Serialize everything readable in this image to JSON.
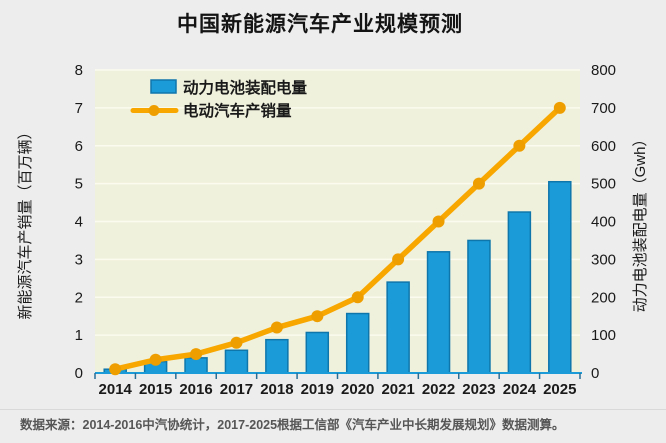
{
  "page": {
    "title": "中国新能源汽车产业规模预测",
    "footer": "数据来源：2014-2016中汽协统计，2017-2025根据工信部《汽车产业中长期发展规划》数据测算。"
  },
  "colors": {
    "page_bg": "#ededed",
    "plot_bg": "#f0f1dc",
    "gridline": "#fbfbef",
    "bar_fill": "#1b9bd8",
    "bar_border": "#0f76ab",
    "line": "#f7a700",
    "marker": "#ef9e00",
    "axis_line": "#1b9bd8",
    "axis_tick": "#2a6e96",
    "text": "#1a1a1a"
  },
  "chart_data": {
    "type": "bar+line combo",
    "title": "中国新能源汽车产业规模预测",
    "categories": [
      "2014",
      "2015",
      "2016",
      "2017",
      "2018",
      "2019",
      "2020",
      "2021",
      "2022",
      "2023",
      "2024",
      "2025"
    ],
    "series": [
      {
        "name": "动力电池装配电量",
        "type": "bar",
        "axis": "right",
        "unit": "Gwh",
        "values": [
          10,
          30,
          40,
          60,
          88,
          107,
          157,
          240,
          320,
          350,
          425,
          505
        ]
      },
      {
        "name": "电动汽车产销量",
        "type": "line",
        "axis": "left",
        "unit": "百万辆",
        "values": [
          0.1,
          0.35,
          0.5,
          0.8,
          1.2,
          1.5,
          2.0,
          3.0,
          4.0,
          5.0,
          6.0,
          7.0
        ]
      }
    ],
    "left_axis": {
      "label": "新能源汽车产销量（百万辆）",
      "min": 0,
      "max": 8,
      "step": 1,
      "ticks": [
        "0",
        "1",
        "2",
        "3",
        "4",
        "5",
        "6",
        "7",
        "8"
      ]
    },
    "right_axis": {
      "label": "动力电池装配电量（Gwh）",
      "min": 0,
      "max": 800,
      "step": 100,
      "ticks": [
        "0",
        "100",
        "200",
        "300",
        "400",
        "500",
        "600",
        "700",
        "800"
      ]
    },
    "grid": true,
    "legend_position": "top-left-inside"
  }
}
